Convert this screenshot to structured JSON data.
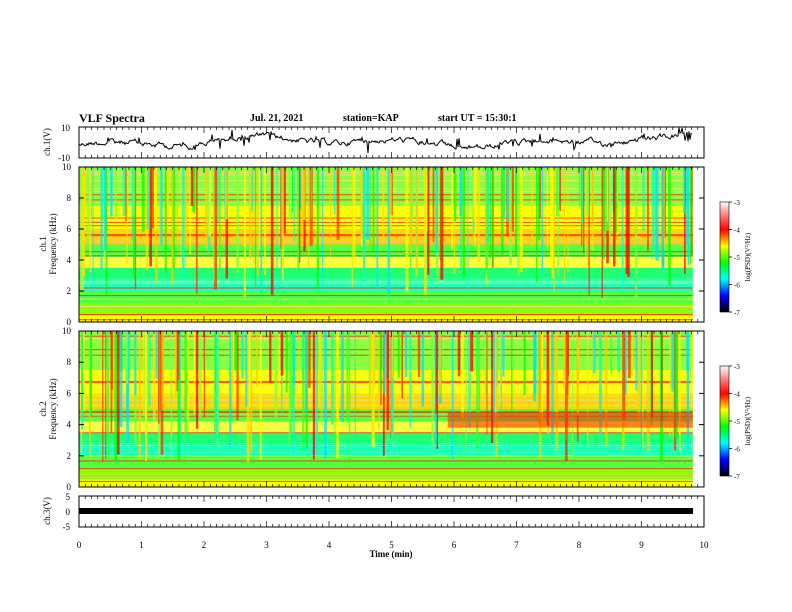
{
  "header": {
    "title": "VLF Spectra",
    "date": "Jul. 21, 2021",
    "station": "station=KAP",
    "start": "start UT =  15:30:1"
  },
  "chart_data": [
    {
      "type": "line",
      "panel": "ch.1 waveform",
      "ylabel": "ch.1(V)",
      "ylim": [
        -10,
        10
      ],
      "yticks": [
        "10",
        "-10"
      ],
      "xlim": [
        0,
        10
      ]
    },
    {
      "type": "heatmap",
      "panel": "ch.1 spectrogram",
      "ylabel_line1": "ch.1",
      "ylabel_line2": "Frequency (kHz)",
      "ylim": [
        0,
        10
      ],
      "yticks": [
        "0",
        "2",
        "4",
        "6",
        "8",
        "10"
      ],
      "xlim": [
        0,
        10
      ],
      "colorbar": {
        "label": "log(PSD)(V²/Hz)",
        "range": [
          -7,
          -3
        ],
        "ticks": [
          "-3",
          "-4",
          "-5",
          "-6",
          "-7"
        ]
      }
    },
    {
      "type": "heatmap",
      "panel": "ch.2 spectrogram",
      "ylabel_line1": "ch.2",
      "ylabel_line2": "Frequency (kHz)",
      "ylim": [
        0,
        10
      ],
      "yticks": [
        "0",
        "2",
        "4",
        "6",
        "8",
        "10"
      ],
      "xlim": [
        0,
        10
      ],
      "colorbar": {
        "label": "log(PSD)(V²/Hz)",
        "range": [
          -7,
          -3
        ],
        "ticks": [
          "-3",
          "-4",
          "-5",
          "-6",
          "-7"
        ]
      }
    },
    {
      "type": "line",
      "panel": "ch.3 waveform",
      "ylabel": "ch.3(V)",
      "ylim": [
        -5,
        5
      ],
      "yticks": [
        "5",
        "0",
        "-5"
      ],
      "xlim": [
        0,
        10
      ],
      "xlabel": "Time (min)",
      "xticks": [
        "0",
        "1",
        "2",
        "3",
        "4",
        "5",
        "6",
        "7",
        "8",
        "9",
        "10"
      ]
    }
  ]
}
